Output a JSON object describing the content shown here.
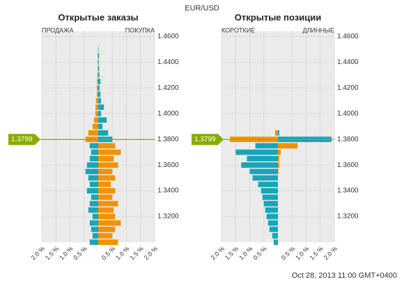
{
  "title": "EUR/USD",
  "footer": "Oct 28, 2013 11:00 GMT+0400",
  "chart_data": [
    {
      "type": "hbar-book",
      "title": "Открытые заказы",
      "current": 1.3799,
      "y": [
        1.3,
        1.305,
        1.31,
        1.315,
        1.32,
        1.325,
        1.33,
        1.335,
        1.34,
        1.345,
        1.35,
        1.355,
        1.36,
        1.365,
        1.37,
        1.375,
        1.38,
        1.385,
        1.39,
        1.395,
        1.4,
        1.405,
        1.41,
        1.415,
        1.42,
        1.425,
        1.43,
        1.435,
        1.44,
        1.445,
        1.45
      ],
      "series": [
        {
          "name": "ПРОДАЖА",
          "side": "left",
          "color_above": "#f39200",
          "color_below": "#18a5b8",
          "values": [
            0.3,
            0.2,
            0.25,
            0.3,
            0.2,
            0.35,
            0.3,
            0.25,
            0.4,
            0.3,
            0.35,
            0.45,
            0.4,
            0.3,
            0.25,
            0.3,
            0.45,
            0.35,
            0.2,
            0.15,
            0.1,
            0.1,
            0.08,
            0.05,
            0.05,
            0.04,
            0.03,
            0.02,
            0.02,
            0.02,
            0.01
          ]
        },
        {
          "name": "ПОКУПКА",
          "side": "right",
          "color_above": "#18a5b8",
          "color_below": "#f39200",
          "values": [
            0.7,
            0.5,
            0.6,
            0.8,
            0.6,
            0.55,
            0.7,
            0.5,
            0.6,
            0.45,
            0.6,
            0.5,
            0.7,
            0.55,
            0.8,
            0.6,
            0.5,
            0.35,
            0.15,
            0.3,
            0.1,
            0.2,
            0.1,
            0.08,
            0.05,
            0.08,
            0.04,
            0.03,
            0.02,
            0.03,
            0.01
          ]
        }
      ],
      "xlim": [
        -2,
        2
      ],
      "xticks": [
        {
          "value": -2,
          "label": "2.0 %"
        },
        {
          "value": -1.5,
          "label": "1.5 %"
        },
        {
          "value": -1,
          "label": "1.0 %"
        },
        {
          "value": -0.5,
          "label": "0.5 %"
        },
        {
          "value": 0.5,
          "label": "0.5 %"
        },
        {
          "value": 1,
          "label": "1.0 %"
        },
        {
          "value": 1.5,
          "label": "1.5 %"
        },
        {
          "value": 2,
          "label": "2.0 %"
        }
      ],
      "ylim": [
        1.3,
        1.464
      ],
      "yticks": [
        {
          "value": 1.32,
          "label": "1.3200"
        },
        {
          "value": 1.34,
          "label": "1.3400"
        },
        {
          "value": 1.36,
          "label": "1.3600"
        },
        {
          "value": 1.38,
          "label": "1.3800"
        },
        {
          "value": 1.4,
          "label": "1.4000"
        },
        {
          "value": 1.42,
          "label": "1.4200"
        },
        {
          "value": 1.44,
          "label": "1.4400"
        },
        {
          "value": 1.46,
          "label": "1.4600"
        }
      ],
      "grid": true,
      "marker_color": "#8aab00"
    },
    {
      "type": "hbar-book",
      "title": "Открытые позиции",
      "current": 1.3799,
      "y": [
        1.3,
        1.305,
        1.31,
        1.315,
        1.32,
        1.325,
        1.33,
        1.335,
        1.34,
        1.345,
        1.35,
        1.355,
        1.36,
        1.365,
        1.37,
        1.375,
        1.38,
        1.385,
        1.39,
        1.395,
        1.4,
        1.405,
        1.41,
        1.415,
        1.42,
        1.425,
        1.43,
        1.435,
        1.44,
        1.445,
        1.45
      ],
      "series": [
        {
          "name": "КОРОТКИЕ",
          "side": "left",
          "color_above": "#f39200",
          "color_below": "#18a5b8",
          "values": [
            0.15,
            0.2,
            0.3,
            0.35,
            0.4,
            0.45,
            0.5,
            0.55,
            0.6,
            0.7,
            0.9,
            1.0,
            1.3,
            1.1,
            1.5,
            0.8,
            1.7,
            0.1,
            0,
            0,
            0,
            0,
            0,
            0,
            0,
            0,
            0,
            0,
            0,
            0,
            0
          ]
        },
        {
          "name": "ДЛИННЫЕ",
          "side": "right",
          "color_above": "#18a5b8",
          "color_below": "#f39200",
          "values": [
            0,
            0,
            0,
            0,
            0,
            0,
            0,
            0,
            0,
            0,
            0,
            0.02,
            0.05,
            0.05,
            0.1,
            0.7,
            1.9,
            0.05,
            0,
            0,
            0,
            0,
            0,
            0,
            0,
            0,
            0,
            0,
            0,
            0,
            0
          ]
        }
      ],
      "xlim": [
        -2,
        2
      ],
      "xticks": [
        {
          "value": -2,
          "label": "2.0 %"
        },
        {
          "value": -1.5,
          "label": "1.5 %"
        },
        {
          "value": -1,
          "label": "1.0 %"
        },
        {
          "value": -0.5,
          "label": "0.5 %"
        },
        {
          "value": 0.5,
          "label": "0.5 %"
        },
        {
          "value": 1,
          "label": "1.0 %"
        },
        {
          "value": 1.5,
          "label": "1.5 %"
        },
        {
          "value": 2,
          "label": "2.0 %"
        }
      ],
      "ylim": [
        1.3,
        1.464
      ],
      "yticks": [
        {
          "value": 1.32,
          "label": "1.3200"
        },
        {
          "value": 1.34,
          "label": "1.3400"
        },
        {
          "value": 1.36,
          "label": "1.3600"
        },
        {
          "value": 1.38,
          "label": "1.3800"
        },
        {
          "value": 1.4,
          "label": "1.4000"
        },
        {
          "value": 1.42,
          "label": "1.4200"
        },
        {
          "value": 1.44,
          "label": "1.4400"
        },
        {
          "value": 1.46,
          "label": "1.4600"
        }
      ],
      "grid": true,
      "marker_color": "#8aab00"
    }
  ]
}
